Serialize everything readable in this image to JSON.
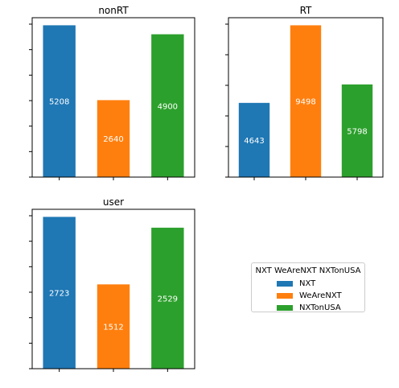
{
  "chart_data": [
    {
      "type": "bar",
      "title": "nonRT",
      "categories": [
        "NXT",
        "WeAreNXT",
        "NXTonUSA"
      ],
      "values": [
        5208,
        2640,
        4900
      ],
      "ylim": [
        0,
        5468
      ],
      "colors": [
        "#1f77b4",
        "#ff7f0e",
        "#2ca02c"
      ],
      "data_label_color": "#ffffff",
      "xlabel": "",
      "ylabel": "",
      "tick_labels_visible": false,
      "grid": false
    },
    {
      "type": "bar",
      "title": "RT",
      "categories": [
        "NXT",
        "WeAreNXT",
        "NXTonUSA"
      ],
      "values": [
        4643,
        9498,
        5798
      ],
      "ylim": [
        0,
        9973
      ],
      "colors": [
        "#1f77b4",
        "#ff7f0e",
        "#2ca02c"
      ],
      "data_label_color": "#ffffff",
      "xlabel": "",
      "ylabel": "",
      "tick_labels_visible": false,
      "grid": false
    },
    {
      "type": "bar",
      "title": "user",
      "categories": [
        "NXT",
        "WeAreNXT",
        "NXTonUSA"
      ],
      "values": [
        2723,
        1512,
        2529
      ],
      "ylim": [
        0,
        2859
      ],
      "colors": [
        "#1f77b4",
        "#ff7f0e",
        "#2ca02c"
      ],
      "data_label_color": "#ffffff",
      "xlabel": "",
      "ylabel": "",
      "tick_labels_visible": false,
      "grid": false
    }
  ],
  "legend": {
    "title": "NXT WeAreNXT NXTonUSA",
    "placement": "center of empty bottom-right panel",
    "items": [
      {
        "label": "NXT",
        "color": "#1f77b4"
      },
      {
        "label": "WeAreNXT",
        "color": "#ff7f0e"
      },
      {
        "label": "NXTonUSA",
        "color": "#2ca02c"
      }
    ]
  }
}
